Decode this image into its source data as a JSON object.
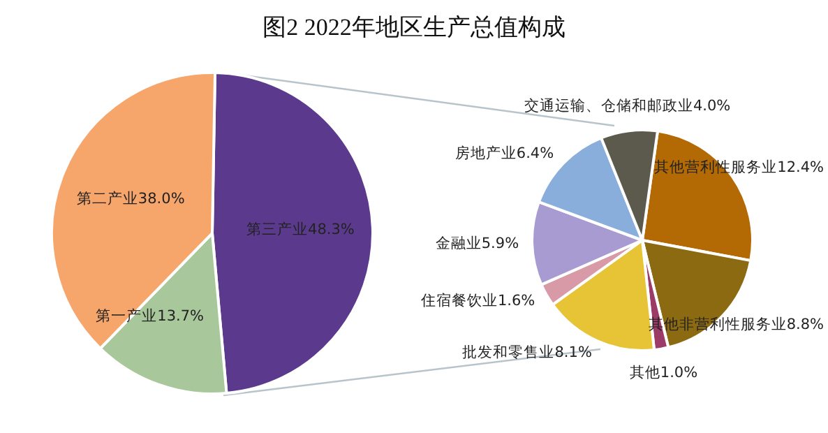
{
  "chart_data": [
    {
      "type": "pie",
      "title": "图2 2022年地区生产总值构成",
      "categories": [
        "第三产业",
        "第一产业",
        "第二产业"
      ],
      "values": [
        48.3,
        13.7,
        38.0
      ],
      "colors": [
        "#5b3a8e",
        "#a8c79a",
        "#f6a56b"
      ],
      "value_labels": [
        "48.3%",
        "13.7%",
        "38.0%"
      ]
    },
    {
      "type": "pie",
      "categories": [
        "其他营利性服务业",
        "其他非营利性服务业",
        "其他",
        "批发和零售业",
        "住宿餐饮业",
        "金融业",
        "房地产业",
        "交通运输、仓储和邮政业"
      ],
      "values": [
        12.4,
        8.8,
        1.0,
        8.1,
        1.6,
        5.9,
        6.4,
        4.0
      ],
      "colors": [
        "#b36a05",
        "#8c6a12",
        "#9c3a68",
        "#e6c435",
        "#d79aa6",
        "#a89bd2",
        "#8aaedc",
        "#5b5a4c"
      ],
      "value_labels": [
        "12.4%",
        "8.8%",
        "1.0%",
        "8.1%",
        "1.6%",
        "5.9%",
        "6.4%",
        "4.0%"
      ]
    }
  ]
}
